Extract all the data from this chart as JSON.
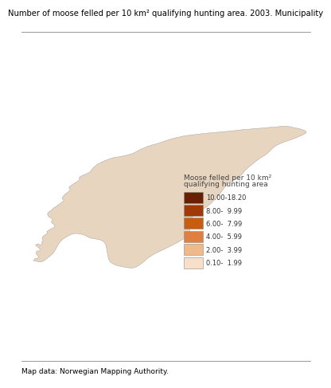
{
  "title": "Number of moose felled per 10 km² qualifying hunting area. 2003. Municipality",
  "legend_title_line1": "Moose felled per 10 km²",
  "legend_title_line2": "qualifying hunting area",
  "legend_labels": [
    "0.10-  1.99",
    "2.00-  3.99",
    "4.00-  5.99",
    "6.00-  7.99",
    "8.00-  9.99",
    "10.00-18.20"
  ],
  "legend_colors": [
    "#f7dfc9",
    "#f0b98a",
    "#e08040",
    "#c85c10",
    "#a03808",
    "#6b1f02"
  ],
  "footer": "Map data: Norwegian Mapping Authority.",
  "background_color": "#ffffff",
  "title_fontsize": 7.2,
  "legend_fontsize": 6.5,
  "footer_fontsize": 6.5
}
